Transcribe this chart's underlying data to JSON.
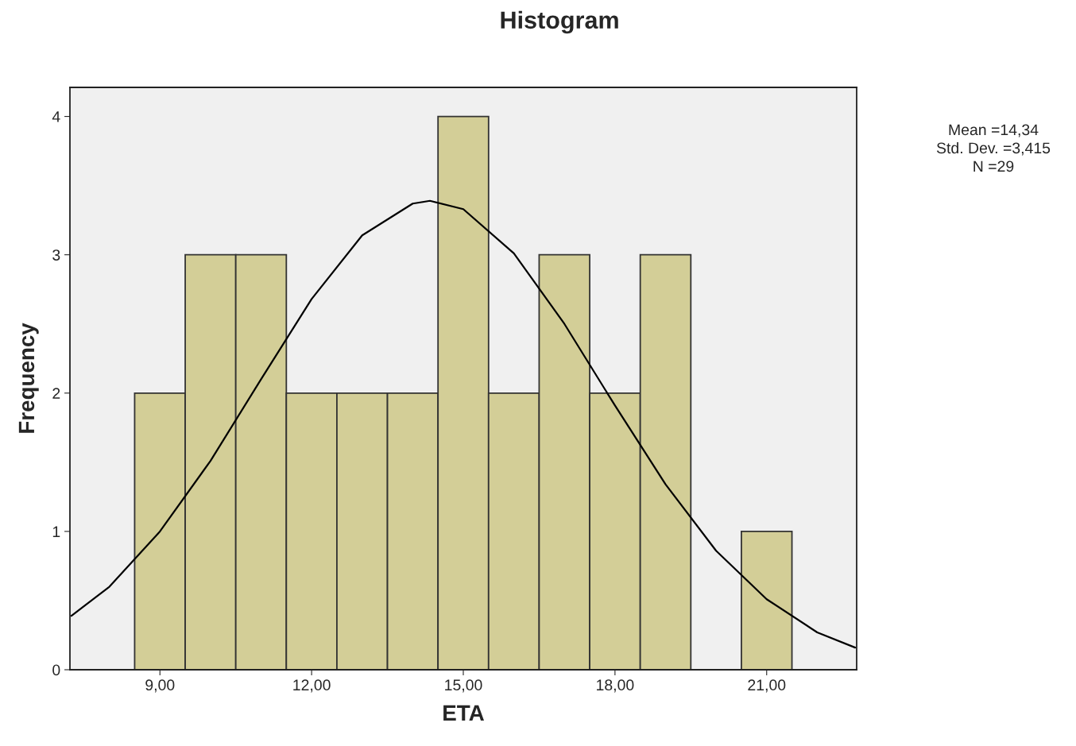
{
  "chart_data": {
    "type": "histogram",
    "title": "Histogram",
    "xlabel": "ETA",
    "ylabel": "Frequency",
    "bins": [
      8.5,
      9.5,
      10.5,
      11.5,
      12.5,
      13.5,
      14.5,
      15.5,
      16.5,
      17.5,
      18.5,
      19.5,
      20.5,
      21.5
    ],
    "values": [
      2,
      3,
      3,
      2,
      2,
      2,
      4,
      2,
      3,
      2,
      3,
      0,
      1
    ],
    "color": "#d3ce97",
    "series": [
      {
        "type": "line",
        "color": "#000000",
        "x": [
          7.25,
          8,
          9,
          10,
          11,
          12,
          13,
          14,
          14.34,
          15,
          16,
          17,
          18,
          19,
          20,
          21,
          22,
          22.75
        ],
        "values": [
          0.39,
          0.6,
          1.0,
          1.51,
          2.1,
          2.68,
          3.14,
          3.37,
          3.39,
          3.33,
          3.01,
          2.5,
          1.91,
          1.34,
          0.86,
          0.51,
          0.27,
          0.16
        ]
      }
    ],
    "xlim": [
      7.22,
      22.78
    ],
    "ylim": [
      0,
      4.21
    ],
    "xticks": [
      {
        "value": 9,
        "label": "9,00"
      },
      {
        "value": 12,
        "label": "12,00"
      },
      {
        "value": 15,
        "label": "15,00"
      },
      {
        "value": 18,
        "label": "18,00"
      },
      {
        "value": 21,
        "label": "21,00"
      }
    ],
    "yticks": [
      0,
      1,
      2,
      3,
      4
    ],
    "grid": false,
    "legend": false,
    "annotations": [
      "Mean =14,34",
      "Std. Dev. =3,415",
      "N =29"
    ]
  }
}
